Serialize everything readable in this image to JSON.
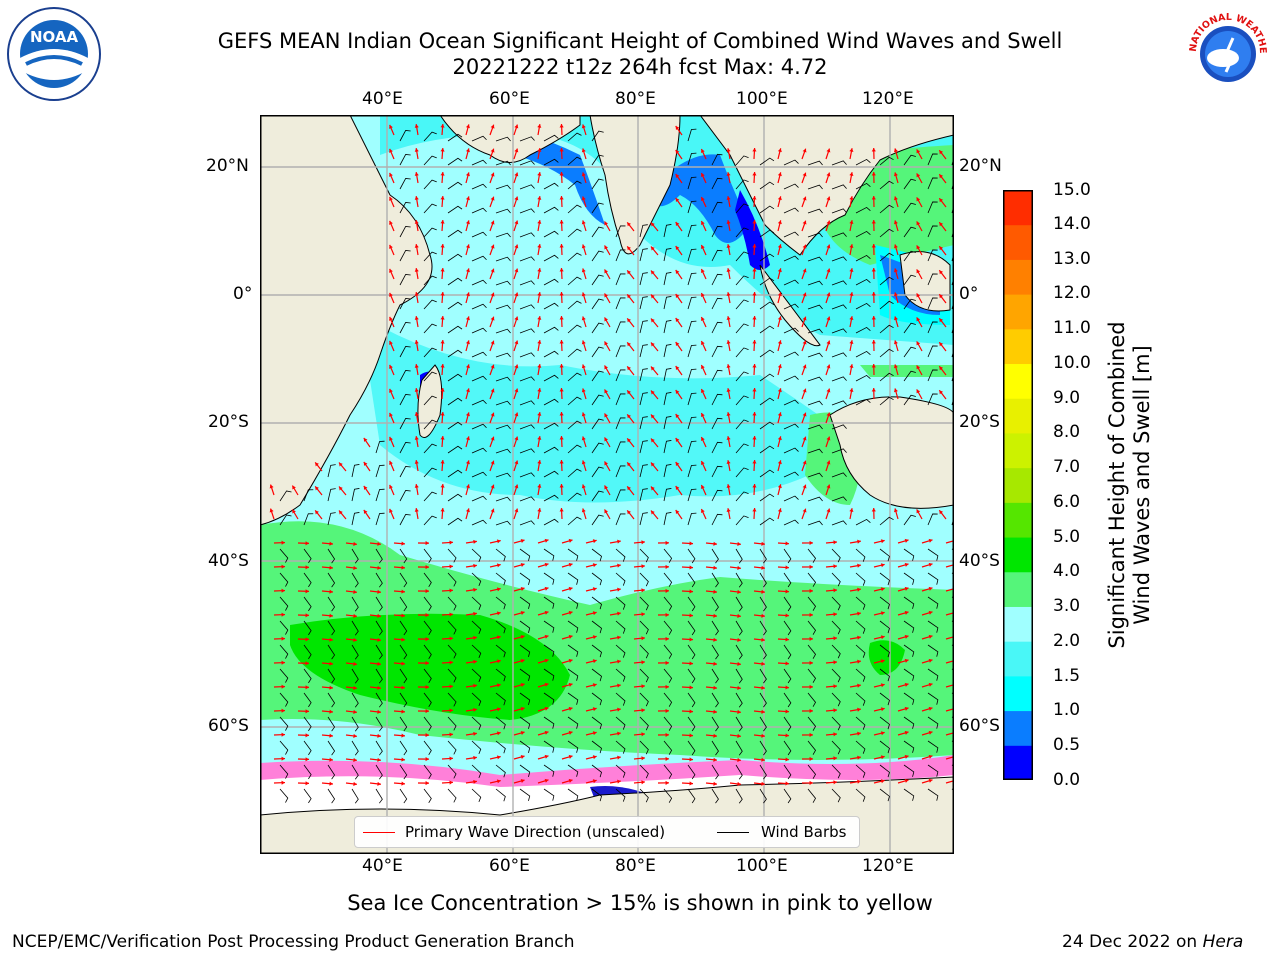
{
  "header": {
    "title_line1": "GEFS MEAN Indian Ocean Significant Height of Combined Wind Waves and Swell",
    "title_line2": "20221222 t12z 264h fcst   Max: 4.72"
  },
  "logos": {
    "noaa": {
      "text": "NOAA",
      "icon": "noaa-logo-icon"
    },
    "nws": {
      "text": "NATIONAL WEATHER SERVICE",
      "icon": "nws-logo-icon"
    }
  },
  "map": {
    "lon_labels": [
      "40°E",
      "60°E",
      "80°E",
      "100°E",
      "120°E"
    ],
    "lat_labels": [
      "20°N",
      "0°",
      "20°S",
      "40°S",
      "60°S"
    ],
    "ocean_colors": {
      "land": "#efeddc",
      "ice": "#ffffff"
    }
  },
  "colorbar": {
    "title_line1": "Significant Height of Combined",
    "title_line2": "Wind Waves and Swell [m]",
    "ticks": [
      "0.0",
      "0.5",
      "1.0",
      "1.5",
      "2.0",
      "3.0",
      "4.0",
      "5.0",
      "6.0",
      "7.0",
      "8.0",
      "9.0",
      "10.0",
      "11.0",
      "12.0",
      "13.0",
      "14.0",
      "15.0"
    ],
    "colors": [
      "#0000ff",
      "#0a7dff",
      "#00ffff",
      "#49f7f7",
      "#a0ffff",
      "#55f57a",
      "#00e600",
      "#55e600",
      "#a7e800",
      "#ccf200",
      "#e8f000",
      "#ffff00",
      "#ffcc00",
      "#ffa500",
      "#ff8000",
      "#ff5a00",
      "#ff2d00"
    ]
  },
  "legend": {
    "wave_label": "Primary Wave Direction (unscaled)",
    "wind_label": "Wind Barbs",
    "wave_color": "#ff0000",
    "wind_color": "#000000"
  },
  "notes": {
    "sea_ice": "Sea Ice Concentration > 15% is shown in pink to yellow"
  },
  "footer": {
    "left": "NCEP/EMC/Verification Post Processing Product Generation Branch",
    "right_prefix": "24 Dec 2022 on ",
    "right_machine": "Hera"
  }
}
